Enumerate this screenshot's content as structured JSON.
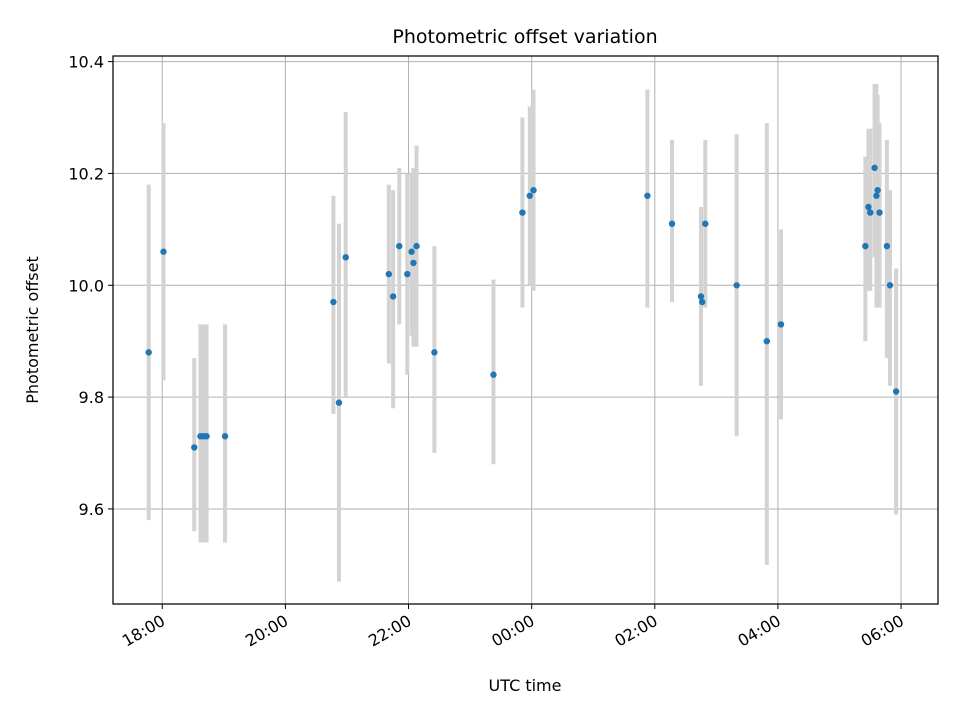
{
  "chart_data": {
    "type": "scatter",
    "title": "Photometric offset variation",
    "xlabel": "UTC time",
    "ylabel": "Photometric offset",
    "x_unit": "hours",
    "xlim": [
      17.2,
      30.6
    ],
    "ylim": [
      9.43,
      10.41
    ],
    "x_ticks": [
      {
        "value": 18,
        "label": "18:00"
      },
      {
        "value": 20,
        "label": "20:00"
      },
      {
        "value": 22,
        "label": "22:00"
      },
      {
        "value": 24,
        "label": "00:00"
      },
      {
        "value": 26,
        "label": "02:00"
      },
      {
        "value": 28,
        "label": "04:00"
      },
      {
        "value": 30,
        "label": "06:00"
      }
    ],
    "y_ticks": [
      {
        "value": 9.6,
        "label": "9.6"
      },
      {
        "value": 9.8,
        "label": "9.8"
      },
      {
        "value": 10.0,
        "label": "10.0"
      },
      {
        "value": 10.2,
        "label": "10.2"
      },
      {
        "value": 10.4,
        "label": "10.4"
      }
    ],
    "grid": true,
    "colors": {
      "points": "#1f77b4",
      "errorbars": "#d3d3d3",
      "grid": "#b0b0b0"
    },
    "points": [
      {
        "x": 17.78,
        "y": 9.88,
        "ylo": 9.58,
        "yhi": 10.18
      },
      {
        "x": 18.02,
        "y": 10.06,
        "ylo": 9.83,
        "yhi": 10.29
      },
      {
        "x": 18.52,
        "y": 9.71,
        "ylo": 9.56,
        "yhi": 9.87
      },
      {
        "x": 18.62,
        "y": 9.73,
        "ylo": 9.54,
        "yhi": 9.93
      },
      {
        "x": 18.67,
        "y": 9.73,
        "ylo": 9.54,
        "yhi": 9.93
      },
      {
        "x": 18.72,
        "y": 9.73,
        "ylo": 9.54,
        "yhi": 9.93
      },
      {
        "x": 19.02,
        "y": 9.73,
        "ylo": 9.54,
        "yhi": 9.93
      },
      {
        "x": 20.78,
        "y": 9.97,
        "ylo": 9.77,
        "yhi": 10.16
      },
      {
        "x": 20.87,
        "y": 9.79,
        "ylo": 9.47,
        "yhi": 10.11
      },
      {
        "x": 20.98,
        "y": 10.05,
        "ylo": 9.8,
        "yhi": 10.31
      },
      {
        "x": 21.68,
        "y": 10.02,
        "ylo": 9.86,
        "yhi": 10.18
      },
      {
        "x": 21.75,
        "y": 9.98,
        "ylo": 9.78,
        "yhi": 10.17
      },
      {
        "x": 21.85,
        "y": 10.07,
        "ylo": 9.93,
        "yhi": 10.21
      },
      {
        "x": 21.98,
        "y": 10.02,
        "ylo": 9.84,
        "yhi": 10.2
      },
      {
        "x": 22.05,
        "y": 10.06,
        "ylo": 9.91,
        "yhi": 10.2
      },
      {
        "x": 22.08,
        "y": 10.04,
        "ylo": 9.89,
        "yhi": 10.21
      },
      {
        "x": 22.13,
        "y": 10.07,
        "ylo": 9.89,
        "yhi": 10.25
      },
      {
        "x": 22.42,
        "y": 9.88,
        "ylo": 9.7,
        "yhi": 10.07
      },
      {
        "x": 23.38,
        "y": 9.84,
        "ylo": 9.68,
        "yhi": 10.01
      },
      {
        "x": 23.85,
        "y": 10.13,
        "ylo": 9.96,
        "yhi": 10.3
      },
      {
        "x": 23.97,
        "y": 10.16,
        "ylo": 10.0,
        "yhi": 10.32
      },
      {
        "x": 24.03,
        "y": 10.17,
        "ylo": 9.99,
        "yhi": 10.35
      },
      {
        "x": 25.88,
        "y": 10.16,
        "ylo": 9.96,
        "yhi": 10.35
      },
      {
        "x": 26.28,
        "y": 10.11,
        "ylo": 9.97,
        "yhi": 10.26
      },
      {
        "x": 26.75,
        "y": 9.98,
        "ylo": 9.82,
        "yhi": 10.14
      },
      {
        "x": 26.77,
        "y": 9.97,
        "ylo": 9.97,
        "yhi": 9.97
      },
      {
        "x": 26.82,
        "y": 10.11,
        "ylo": 9.96,
        "yhi": 10.26
      },
      {
        "x": 27.33,
        "y": 10.0,
        "ylo": 9.73,
        "yhi": 10.27
      },
      {
        "x": 27.82,
        "y": 9.9,
        "ylo": 9.5,
        "yhi": 10.29
      },
      {
        "x": 28.05,
        "y": 9.93,
        "ylo": 9.76,
        "yhi": 10.1
      },
      {
        "x": 29.42,
        "y": 10.07,
        "ylo": 9.9,
        "yhi": 10.23
      },
      {
        "x": 29.47,
        "y": 10.14,
        "ylo": 9.99,
        "yhi": 10.28
      },
      {
        "x": 29.5,
        "y": 10.13,
        "ylo": 9.99,
        "yhi": 10.28
      },
      {
        "x": 29.57,
        "y": 10.21,
        "ylo": 10.05,
        "yhi": 10.36
      },
      {
        "x": 29.6,
        "y": 10.16,
        "ylo": 9.96,
        "yhi": 10.36
      },
      {
        "x": 29.62,
        "y": 10.17,
        "ylo": 9.99,
        "yhi": 10.34
      },
      {
        "x": 29.65,
        "y": 10.13,
        "ylo": 9.96,
        "yhi": 10.29
      },
      {
        "x": 29.77,
        "y": 10.07,
        "ylo": 9.87,
        "yhi": 10.26
      },
      {
        "x": 29.82,
        "y": 10.0,
        "ylo": 9.82,
        "yhi": 10.17
      },
      {
        "x": 29.92,
        "y": 9.81,
        "ylo": 9.59,
        "yhi": 10.03
      }
    ]
  }
}
